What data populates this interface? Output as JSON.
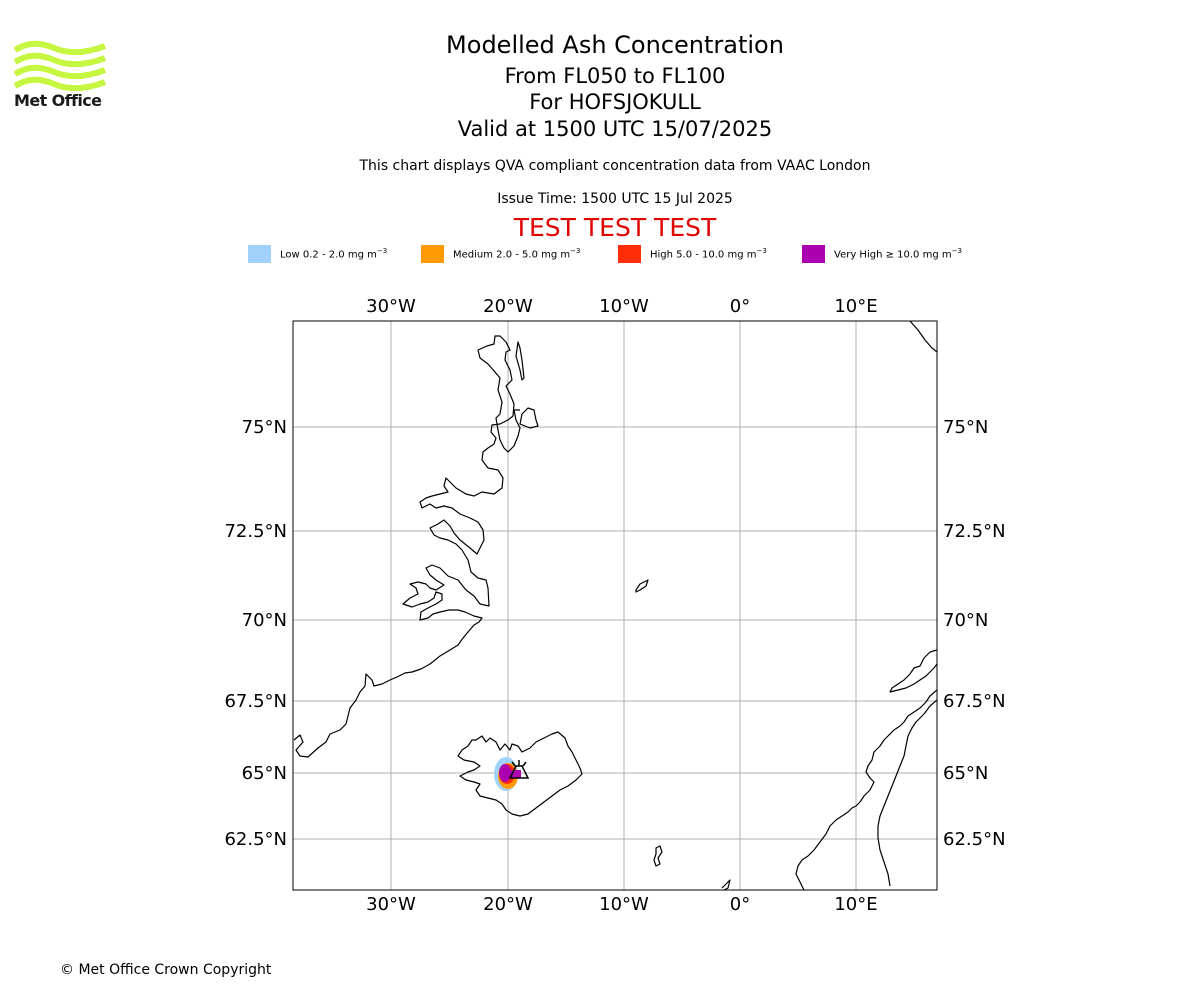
{
  "branding": {
    "logo_text": "Met Office",
    "logo_color": "#c6f63f"
  },
  "header": {
    "title": "Modelled Ash Concentration",
    "levels": "From FL050 to FL100",
    "volcano": "For HOFSJOKULL",
    "valid": "Valid at 1500 UTC 15/07/2025",
    "subtitle": "This chart displays QVA compliant concentration data from VAAC London",
    "issue_time": "Issue Time: 1500 UTC 15 Jul 2025",
    "test_banner": "TEST TEST TEST",
    "test_color": "#e00000"
  },
  "legend": [
    {
      "label": "Low 0.2 - 2.0 mg m",
      "sup": "−3",
      "color": "#a0d2fb"
    },
    {
      "label": "Medium 2.0 - 5.0 mg m",
      "sup": "−3",
      "color": "#ff9a04"
    },
    {
      "label": "High 5.0 - 10.0 mg m",
      "sup": "−3",
      "color": "#ff2c05"
    },
    {
      "label": "Very High ≥ 10.0 mg m",
      "sup": "−3",
      "color": "#aa00b0"
    }
  ],
  "map": {
    "lon_ticks_top": [
      "30°W",
      "20°W",
      "10°W",
      "0°",
      "10°E"
    ],
    "lon_ticks_bottom": [
      "30°W",
      "20°W",
      "10°W",
      "0°",
      "10°E"
    ],
    "lat_ticks_left": [
      "75°N",
      "72.5°N",
      "70°N",
      "67.5°N",
      "65°N",
      "62.5°N"
    ],
    "lat_ticks_right": [
      "75°N",
      "72.5°N",
      "70°N",
      "67.5°N",
      "65°N",
      "62.5°N"
    ],
    "gridline_color": "#b0b0b0",
    "coastline_color": "#000000"
  },
  "footer": {
    "copyright": "© Met Office Crown Copyright"
  }
}
